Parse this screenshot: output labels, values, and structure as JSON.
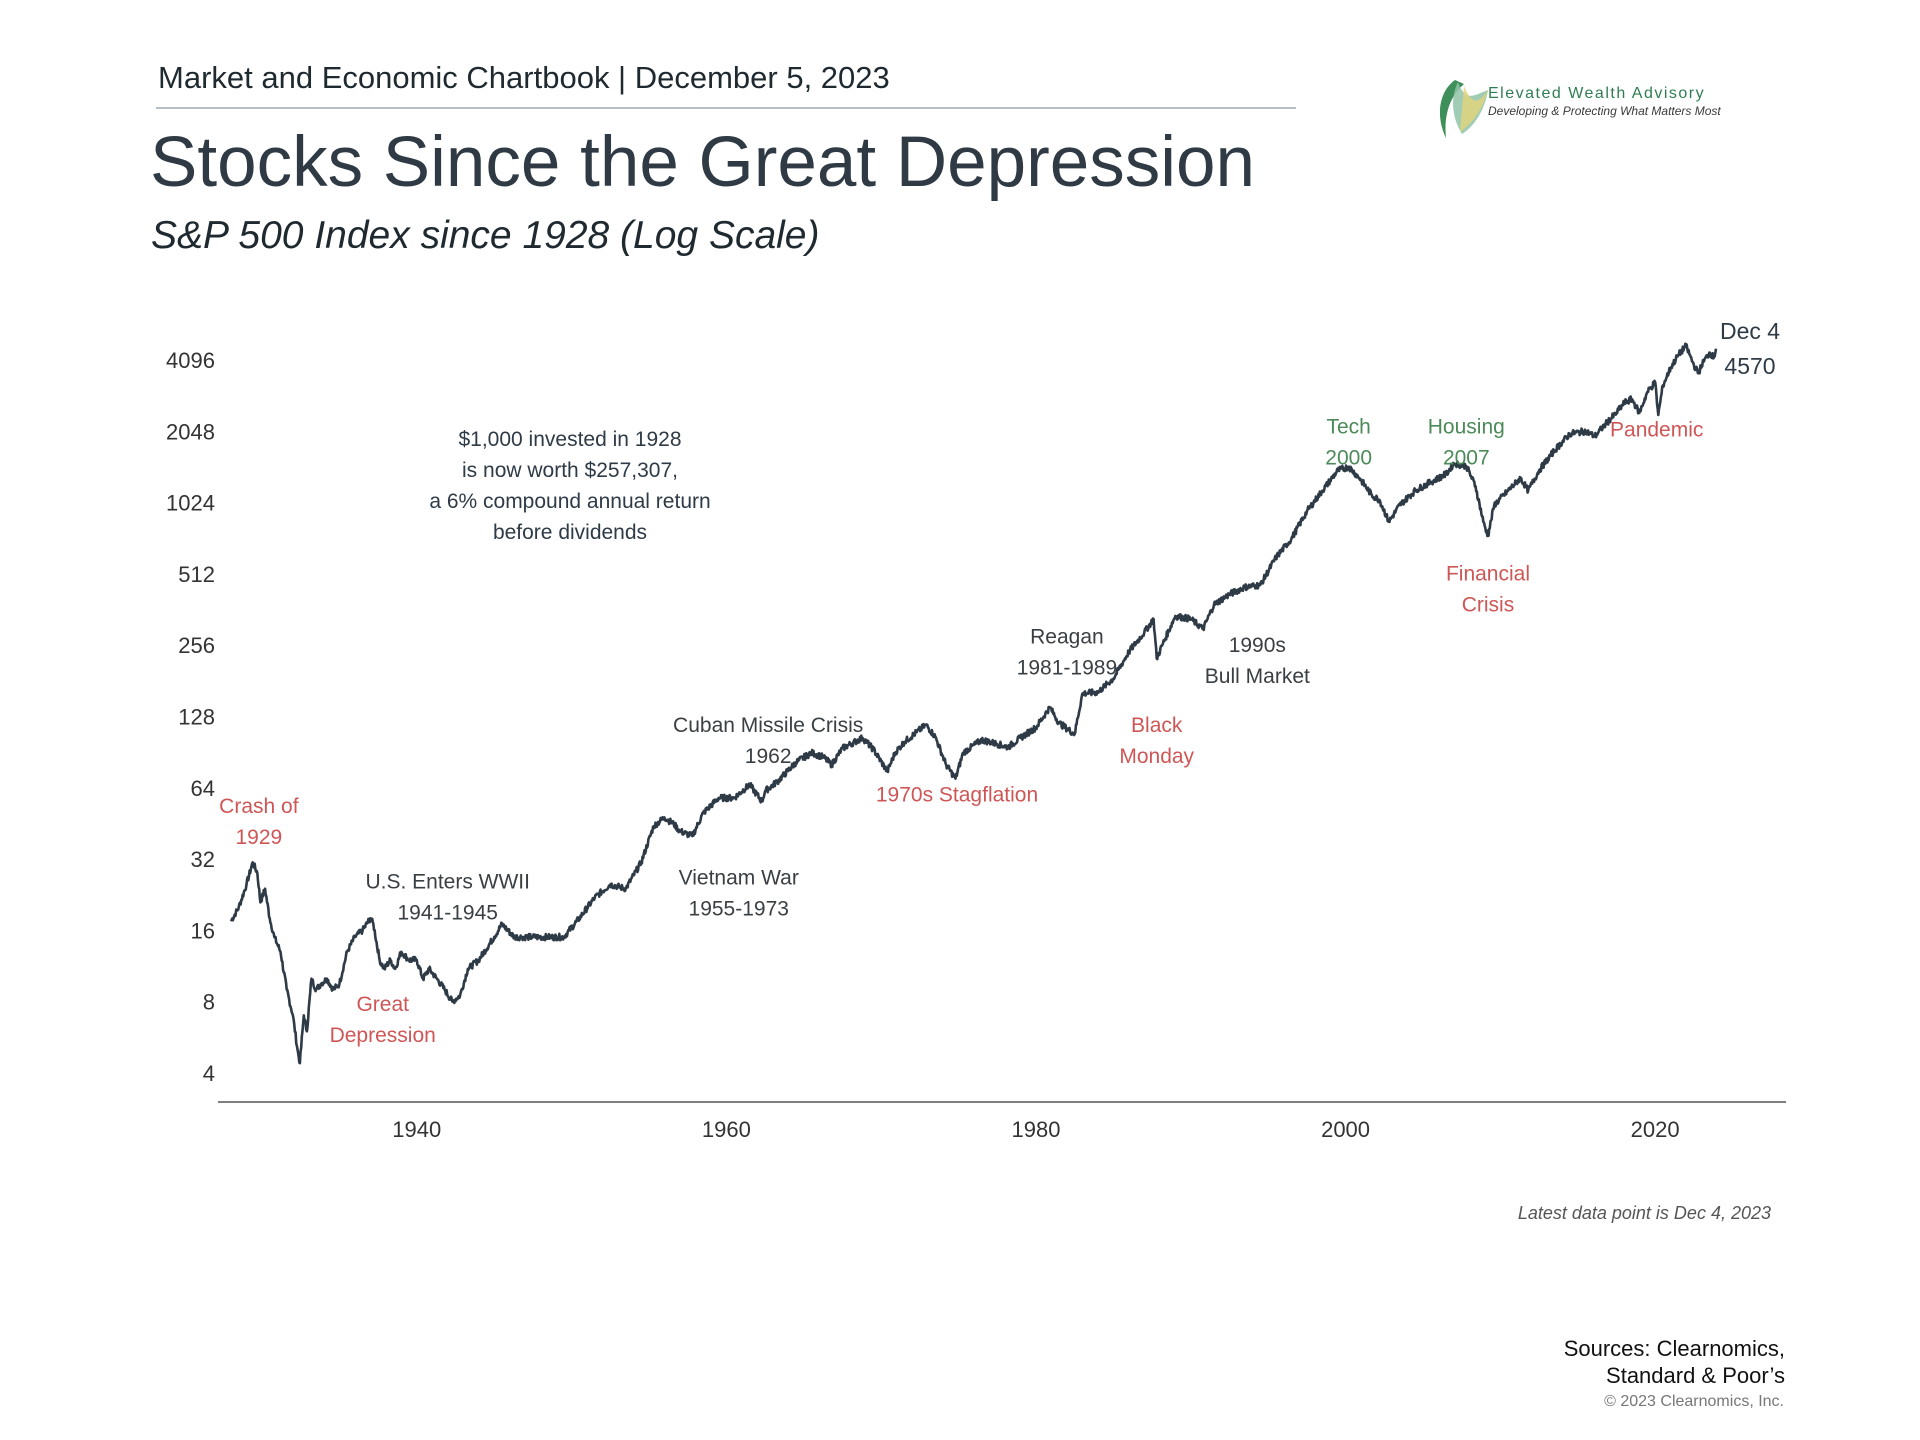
{
  "header": {
    "chartbook": "Market and Economic Chartbook | December 5, 2023",
    "title": "Stocks Since the Great Depression",
    "subtitle": "S&P 500 Index since 1928 (Log Scale)"
  },
  "logo": {
    "name": "Elevated Wealth Advisory",
    "tagline": "Developing & Protecting What Matters Most"
  },
  "footer": {
    "sources_line1": "Sources: Clearnomics,",
    "sources_line2": "Standard & Poor’s",
    "copyright": "© 2023 Clearnomics, Inc."
  },
  "colors": {
    "line": "#2e3b47",
    "negative": "#cf5656",
    "positive": "#4d8a5a",
    "neutral": "#3a3f44",
    "axis": "#555555"
  },
  "chart_data": {
    "type": "line",
    "y_scale": "log2",
    "ylim": [
      4,
      4570
    ],
    "xlim": [
      1928,
      2023.9
    ],
    "y_ticks": [
      4,
      8,
      16,
      32,
      64,
      128,
      256,
      512,
      1024,
      2048,
      4096
    ],
    "x_ticks": [
      1940,
      1960,
      1980,
      2000,
      2020
    ],
    "grid": false,
    "series": [
      {
        "values_x": [
          1928.0,
          1928.5,
          1929.0,
          1929.4,
          1929.7,
          1929.9,
          1930.2,
          1930.5,
          1930.8,
          1931.2,
          1931.6,
          1932.0,
          1932.3,
          1932.45,
          1932.7,
          1932.9,
          1933.2,
          1933.5,
          1933.8,
          1934.2,
          1934.6,
          1935.0,
          1935.5,
          1936.0,
          1936.5,
          1937.0,
          1937.2,
          1937.6,
          1937.9,
          1938.3,
          1938.6,
          1939.0,
          1939.5,
          1940.0,
          1940.4,
          1940.8,
          1941.3,
          1941.8,
          1942.3,
          1942.8,
          1943.3,
          1944.0,
          1945.0,
          1945.5,
          1946.3,
          1946.8,
          1947.5,
          1948.5,
          1949.5,
          1950.5,
          1951.5,
          1952.5,
          1953.5,
          1954.5,
          1955.3,
          1956.0,
          1956.6,
          1957.0,
          1957.8,
          1958.5,
          1959.5,
          1960.5,
          1961.5,
          1962.3,
          1962.5,
          1963.3,
          1964.5,
          1965.5,
          1966.3,
          1966.8,
          1967.5,
          1968.8,
          1969.5,
          1970.4,
          1970.9,
          1971.5,
          1972.3,
          1972.9,
          1973.5,
          1974.2,
          1974.8,
          1975.3,
          1976.5,
          1977.5,
          1978.2,
          1979.0,
          1980.0,
          1980.9,
          1981.5,
          1982.5,
          1983.0,
          1984.0,
          1985.0,
          1986.0,
          1987.0,
          1987.6,
          1987.8,
          1988.2,
          1989.0,
          1990.0,
          1990.8,
          1991.5,
          1992.5,
          1993.5,
          1994.5,
          1995.5,
          1996.5,
          1997.5,
          1998.5,
          1999.5,
          2000.2,
          2000.9,
          2001.7,
          2002.2,
          2002.8,
          2003.5,
          2004.5,
          2005.5,
          2006.5,
          2007.0,
          2007.8,
          2008.4,
          2008.9,
          2009.2,
          2009.6,
          2010.5,
          2011.3,
          2011.8,
          2012.5,
          2013.5,
          2014.5,
          2015.5,
          2016.1,
          2016.8,
          2017.5,
          2018.0,
          2018.5,
          2018.98,
          2019.5,
          2020.0,
          2020.2,
          2020.5,
          2021.0,
          2021.5,
          2021.99,
          2022.5,
          2022.8,
          2023.0,
          2023.5,
          2023.8,
          2023.93
        ],
        "values_y": [
          17.5,
          20,
          25,
          31,
          28,
          21,
          24,
          18,
          15,
          13,
          9,
          7,
          5,
          4.4,
          7,
          6,
          10,
          9,
          9.5,
          10,
          9,
          9.5,
          13,
          15,
          16,
          18,
          17,
          12,
          11,
          12,
          11,
          13,
          12,
          12,
          10,
          11,
          10,
          9,
          8,
          8.5,
          11,
          12,
          15,
          17,
          15,
          15,
          15,
          15,
          15,
          18,
          22,
          25,
          24,
          31,
          44,
          48,
          45,
          42,
          40,
          50,
          58,
          58,
          66,
          56,
          62,
          68,
          82,
          90,
          86,
          80,
          94,
          104,
          93,
          75,
          90,
          100,
          110,
          118,
          105,
          80,
          70,
          90,
          102,
          98,
          95,
          104,
          115,
          140,
          120,
          108,
          160,
          162,
          185,
          240,
          290,
          330,
          225,
          260,
          340,
          330,
          300,
          380,
          420,
          450,
          460,
          600,
          720,
          940,
          1150,
          1400,
          1450,
          1300,
          1100,
          1050,
          850,
          1000,
          1150,
          1250,
          1350,
          1500,
          1460,
          1200,
          850,
          740,
          1000,
          1150,
          1300,
          1150,
          1400,
          1700,
          2000,
          2050,
          1950,
          2200,
          2450,
          2700,
          2800,
          2450,
          3000,
          3300,
          2400,
          3200,
          3800,
          4300,
          4700,
          3900,
          3600,
          3900,
          4400,
          4200,
          4570
        ]
      }
    ],
    "end_label": {
      "date": "Dec 4",
      "value": "4570"
    },
    "callout": [
      "$1,000 invested in 1928",
      "is now worth $257,307,",
      "a 6% compound annual return",
      "before dividends"
    ],
    "note": "Latest data point is Dec 4, 2023",
    "annotations": [
      {
        "lines": [
          "Crash of",
          "1929"
        ],
        "tone": "negative",
        "x": 1929.8,
        "y": 50
      },
      {
        "lines": [
          "Great",
          "Depression"
        ],
        "tone": "negative",
        "x": 1937.8,
        "y": 7.3
      },
      {
        "lines": [
          "U.S. Enters WWII",
          "1941-1945"
        ],
        "tone": "neutral",
        "x": 1942.0,
        "y": 24
      },
      {
        "lines": [
          "Cuban Missile Crisis",
          "1962"
        ],
        "tone": "neutral",
        "x": 1962.7,
        "y": 110
      },
      {
        "lines": [
          "Vietnam War",
          "1955-1973"
        ],
        "tone": "neutral",
        "x": 1960.8,
        "y": 25
      },
      {
        "lines": [
          "1970s Stagflation"
        ],
        "tone": "negative",
        "x": 1974.9,
        "y": 56
      },
      {
        "lines": [
          "Reagan",
          "1981-1989"
        ],
        "tone": "neutral",
        "x": 1982.0,
        "y": 260
      },
      {
        "lines": [
          "Black",
          "Monday"
        ],
        "tone": "negative",
        "x": 1987.8,
        "y": 110
      },
      {
        "lines": [
          "1990s",
          "Bull Market"
        ],
        "tone": "neutral",
        "x": 1994.3,
        "y": 240
      },
      {
        "lines": [
          "Tech",
          "2000"
        ],
        "tone": "positive",
        "x": 2000.2,
        "y": 2000
      },
      {
        "lines": [
          "Housing",
          "2007"
        ],
        "tone": "positive",
        "x": 2007.8,
        "y": 2000
      },
      {
        "lines": [
          "Financial",
          "Crisis"
        ],
        "tone": "negative",
        "x": 2009.2,
        "y": 480
      },
      {
        "lines": [
          "Pandemic"
        ],
        "tone": "negative",
        "x": 2020.1,
        "y": 1950
      }
    ]
  }
}
